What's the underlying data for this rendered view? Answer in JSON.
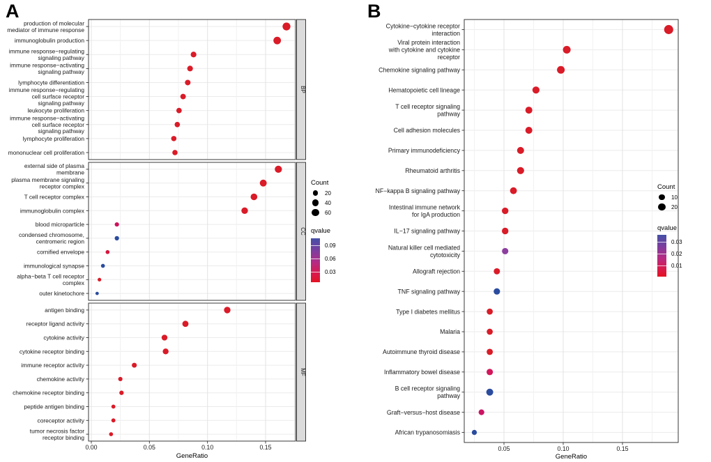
{
  "chart_data": [
    {
      "type": "scatter",
      "panel_label": "A",
      "xlabel": "GeneRatio",
      "x_tick_labels": [
        "0.00",
        "0.05",
        "0.10",
        "0.15"
      ],
      "x_tick_values": [
        0,
        0.05,
        0.1,
        0.15
      ],
      "xlim": [
        -0.002,
        0.176
      ],
      "grid": true,
      "facets": [
        {
          "name": "BP",
          "rows": [
            {
              "lines": [
                "production of molecular",
                "mediator of immune response"
              ],
              "gene_ratio": 0.168,
              "count": 64,
              "color": "#DA1B28"
            },
            {
              "lines": [
                "immunoglobulin production"
              ],
              "gene_ratio": 0.16,
              "count": 58,
              "color": "#DA1B28"
            },
            {
              "lines": [
                "immune response−regulating",
                "signaling pathway"
              ],
              "gene_ratio": 0.088,
              "count": 28,
              "color": "#DA1B28"
            },
            {
              "lines": [
                "immune response−activating",
                "signaling pathway"
              ],
              "gene_ratio": 0.085,
              "count": 27,
              "color": "#DA1B28"
            },
            {
              "lines": [
                "lymphocyte differentiation"
              ],
              "gene_ratio": 0.083,
              "count": 26,
              "color": "#DA1B28"
            },
            {
              "lines": [
                "immune response−regulating",
                "cell surface receptor",
                "signaling pathway"
              ],
              "gene_ratio": 0.079,
              "count": 25,
              "color": "#DA1B28"
            },
            {
              "lines": [
                "leukocyte proliferation"
              ],
              "gene_ratio": 0.0755,
              "count": 24,
              "color": "#DA1B28"
            },
            {
              "lines": [
                "immune response−activating",
                "cell surface receptor",
                "signaling pathway"
              ],
              "gene_ratio": 0.074,
              "count": 23,
              "color": "#DA1B28"
            },
            {
              "lines": [
                "lymphocyte proliferation"
              ],
              "gene_ratio": 0.071,
              "count": 22,
              "color": "#DA1B28"
            },
            {
              "lines": [
                "mononuclear cell proliferation"
              ],
              "gene_ratio": 0.072,
              "count": 22,
              "color": "#DA1B28"
            }
          ]
        },
        {
          "name": "CC",
          "rows": [
            {
              "lines": [
                "external side of plasma",
                "membrane"
              ],
              "gene_ratio": 0.161,
              "count": 50,
              "color": "#DA1B28"
            },
            {
              "lines": [
                "plasma membrane signaling",
                "receptor complex"
              ],
              "gene_ratio": 0.148,
              "count": 46,
              "color": "#DA1B28"
            },
            {
              "lines": [
                "T cell receptor complex"
              ],
              "gene_ratio": 0.14,
              "count": 42,
              "color": "#DA1B28"
            },
            {
              "lines": [
                "immunoglobulin complex"
              ],
              "gene_ratio": 0.132,
              "count": 40,
              "color": "#DA1B28"
            },
            {
              "lines": [
                "blood microparticle"
              ],
              "gene_ratio": 0.022,
              "count": 12,
              "color": "#CC135B"
            },
            {
              "lines": [
                "condensed chromosome,",
                "centromeric region"
              ],
              "gene_ratio": 0.022,
              "count": 13,
              "color": "#2B4C9E"
            },
            {
              "lines": [
                "cornified envelope"
              ],
              "gene_ratio": 0.014,
              "count": 9,
              "color": "#D8143D"
            },
            {
              "lines": [
                "immunological synapse"
              ],
              "gene_ratio": 0.01,
              "count": 9,
              "color": "#2B4C9E"
            },
            {
              "lines": [
                "alpha−beta T cell receptor",
                "complex"
              ],
              "gene_ratio": 0.007,
              "count": 7,
              "color": "#DA1B28"
            },
            {
              "lines": [
                "outer kinetochore"
              ],
              "gene_ratio": 0.005,
              "count": 5,
              "color": "#2B4C9E"
            }
          ]
        },
        {
          "name": "MF",
          "rows": [
            {
              "lines": [
                "antigen binding"
              ],
              "gene_ratio": 0.117,
              "count": 40,
              "color": "#DA1B28"
            },
            {
              "lines": [
                "receptor ligand activity"
              ],
              "gene_ratio": 0.081,
              "count": 34,
              "color": "#DA1B28"
            },
            {
              "lines": [
                "cytokine activity"
              ],
              "gene_ratio": 0.063,
              "count": 29,
              "color": "#DA1B28"
            },
            {
              "lines": [
                "cytokine receptor binding"
              ],
              "gene_ratio": 0.064,
              "count": 30,
              "color": "#DA1B28"
            },
            {
              "lines": [
                "immune receptor activity"
              ],
              "gene_ratio": 0.037,
              "count": 18,
              "color": "#DA1B28"
            },
            {
              "lines": [
                "chemokine activity"
              ],
              "gene_ratio": 0.025,
              "count": 12,
              "color": "#DA1B28"
            },
            {
              "lines": [
                "chemokine receptor binding"
              ],
              "gene_ratio": 0.026,
              "count": 13,
              "color": "#DA1B28"
            },
            {
              "lines": [
                "peptide antigen binding"
              ],
              "gene_ratio": 0.019,
              "count": 10,
              "color": "#DA1B28"
            },
            {
              "lines": [
                "coreceptor activity"
              ],
              "gene_ratio": 0.019,
              "count": 10,
              "color": "#DA1B28"
            },
            {
              "lines": [
                "tumor necrosis factor",
                "receptor binding"
              ],
              "gene_ratio": 0.017,
              "count": 9,
              "color": "#DA1B28"
            }
          ]
        }
      ],
      "legend": {
        "count_title": "Count",
        "count_values": [
          20,
          40,
          60
        ],
        "count_labels": [
          "20",
          "40",
          "60"
        ],
        "count_dot_color": "#000000",
        "qvalue_title": "qvalue",
        "qvalue_tick_labels": [
          "0.09",
          "0.06",
          "0.03"
        ],
        "gradient_top_to_bottom": [
          "#4450A6",
          "#7D3D9F",
          "#B52B84",
          "#D91A4E",
          "#E41222"
        ]
      }
    },
    {
      "type": "scatter",
      "panel_label": "B",
      "xlabel": "GeneRatio",
      "x_tick_labels": [
        "0.05",
        "0.10",
        "0.15"
      ],
      "x_tick_values": [
        0.05,
        0.1,
        0.15
      ],
      "xlim": [
        0.0165,
        0.197
      ],
      "grid": true,
      "rows": [
        {
          "lines": [
            "Cytokine−cytokine receptor",
            "interaction"
          ],
          "gene_ratio": 0.189,
          "count": 36,
          "color": "#DA1B28"
        },
        {
          "lines": [
            "Viral protein interaction",
            "with cytokine and cytokine",
            "receptor"
          ],
          "gene_ratio": 0.103,
          "count": 22,
          "color": "#DA1B28"
        },
        {
          "lines": [
            "Chemokine signaling pathway"
          ],
          "gene_ratio": 0.098,
          "count": 22,
          "color": "#DA1B28"
        },
        {
          "lines": [
            "Hematopoietic cell lineage"
          ],
          "gene_ratio": 0.077,
          "count": 17,
          "color": "#DA1B28"
        },
        {
          "lines": [
            "T cell receptor signaling",
            "pathway"
          ],
          "gene_ratio": 0.071,
          "count": 16,
          "color": "#DA1B28"
        },
        {
          "lines": [
            "Cell adhesion molecules"
          ],
          "gene_ratio": 0.071,
          "count": 16,
          "color": "#DA1B28"
        },
        {
          "lines": [
            "Primary immunodeficiency"
          ],
          "gene_ratio": 0.064,
          "count": 16,
          "color": "#DA1B28"
        },
        {
          "lines": [
            "Rheumatoid arthritis"
          ],
          "gene_ratio": 0.064,
          "count": 17,
          "color": "#DA1B28"
        },
        {
          "lines": [
            "NF−kappa B signaling pathway"
          ],
          "gene_ratio": 0.058,
          "count": 15,
          "color": "#DA1B28"
        },
        {
          "lines": [
            "Intestinal immune network",
            "for IgA production"
          ],
          "gene_ratio": 0.051,
          "count": 13,
          "color": "#DA1B28"
        },
        {
          "lines": [
            "IL−17 signaling pathway"
          ],
          "gene_ratio": 0.051,
          "count": 13,
          "color": "#DA1B28"
        },
        {
          "lines": [
            "Natural killer cell mediated",
            "cytotoxicity"
          ],
          "gene_ratio": 0.051,
          "count": 12,
          "color": "#8C3F9E"
        },
        {
          "lines": [
            "Allograft rejection"
          ],
          "gene_ratio": 0.044,
          "count": 11,
          "color": "#DA1B28"
        },
        {
          "lines": [
            "TNF signaling pathway"
          ],
          "gene_ratio": 0.044,
          "count": 12,
          "color": "#2B4C9E"
        },
        {
          "lines": [
            "Type I diabetes mellitus"
          ],
          "gene_ratio": 0.038,
          "count": 10,
          "color": "#DA1B28"
        },
        {
          "lines": [
            "Malaria"
          ],
          "gene_ratio": 0.038,
          "count": 10,
          "color": "#DA1B28"
        },
        {
          "lines": [
            "Autoimmune thyroid disease"
          ],
          "gene_ratio": 0.038,
          "count": 11,
          "color": "#DA1B28"
        },
        {
          "lines": [
            "Inflammatory bowel disease"
          ],
          "gene_ratio": 0.038,
          "count": 12,
          "color": "#D2175A"
        },
        {
          "lines": [
            "B cell receptor signaling",
            "pathway"
          ],
          "gene_ratio": 0.038,
          "count": 16,
          "color": "#2B4C9E"
        },
        {
          "lines": [
            "Graft−versus−host disease"
          ],
          "gene_ratio": 0.031,
          "count": 8,
          "color": "#CC1463"
        },
        {
          "lines": [
            "African trypanosomiasis"
          ],
          "gene_ratio": 0.025,
          "count": 5,
          "color": "#2B4C9E"
        }
      ],
      "legend": {
        "count_title": "Count",
        "count_values": [
          10,
          20
        ],
        "count_labels": [
          "10",
          "20"
        ],
        "count_dot_color": "#000000",
        "qvalue_title": "qvalue",
        "qvalue_tick_labels": [
          "0.03",
          "0.02",
          "0.01"
        ],
        "gradient_top_to_bottom": [
          "#4450A6",
          "#7D3D9F",
          "#B52B84",
          "#D91A4E",
          "#E41222"
        ]
      }
    }
  ]
}
